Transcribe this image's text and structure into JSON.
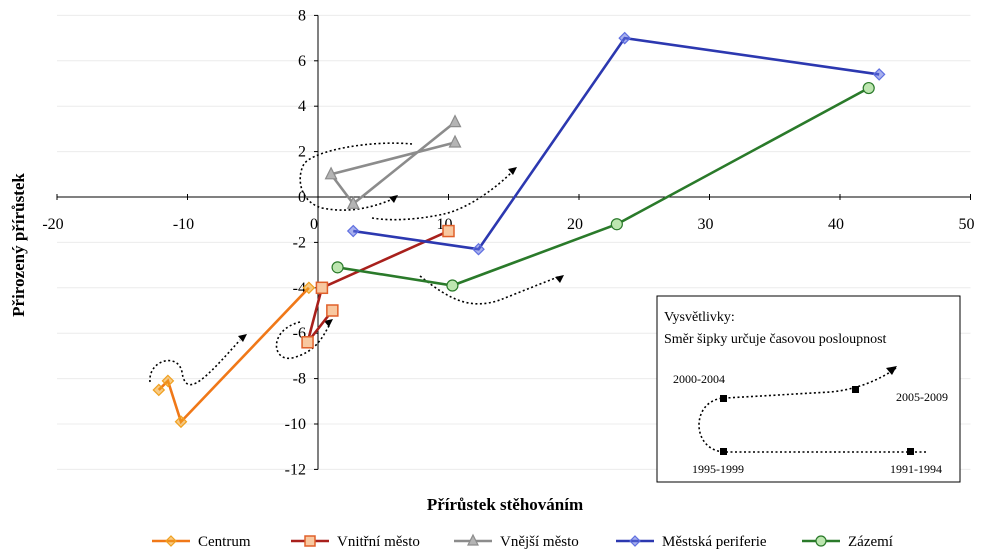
{
  "chart_data": {
    "type": "line",
    "xlabel": "Přírůstek stěhováním",
    "ylabel": "Přirozený přírůstek",
    "xlim": [
      -20,
      50
    ],
    "ylim": [
      -12,
      8
    ],
    "x_ticks": [
      "-20",
      "-10",
      "0",
      "10",
      "20",
      "30",
      "40",
      "50"
    ],
    "y_ticks": [
      "-12",
      "-10",
      "-8",
      "-6",
      "-4",
      "-2",
      "0",
      "2",
      "4",
      "6",
      "8"
    ],
    "grid": "horizontal",
    "legend_position": "bottom",
    "series": [
      {
        "name": "Centrum",
        "color": "#f07818",
        "marker": "diamond",
        "points": [
          [
            -12.2,
            -8.5
          ],
          [
            -11.5,
            -8.1
          ],
          [
            -10.5,
            -9.9
          ],
          [
            -0.7,
            -4.0
          ]
        ]
      },
      {
        "name": "Vnitřní město",
        "color": "#a8201c",
        "marker": "square",
        "points": [
          [
            1.1,
            -5.0
          ],
          [
            -0.8,
            -6.4
          ],
          [
            0.3,
            -4.0
          ],
          [
            10.0,
            -1.5
          ]
        ]
      },
      {
        "name": "Vnější město",
        "color": "#8c8c8c",
        "marker": "triangle",
        "points": [
          [
            10.5,
            3.3
          ],
          [
            2.7,
            -0.3
          ],
          [
            1.0,
            1.0
          ],
          [
            10.5,
            2.4
          ]
        ]
      },
      {
        "name": "Městská periferie",
        "color": "#2c38b0",
        "marker": "diamond",
        "points": [
          [
            2.7,
            -1.5
          ],
          [
            12.3,
            -2.3
          ],
          [
            23.5,
            7.0
          ],
          [
            43.0,
            5.4
          ]
        ]
      },
      {
        "name": "Zázemí",
        "color": "#2a7a2a",
        "marker": "circle",
        "points": [
          [
            1.5,
            -3.1
          ],
          [
            10.3,
            -3.9
          ],
          [
            22.9,
            -1.2
          ],
          [
            42.2,
            4.8
          ]
        ]
      }
    ],
    "annotation": {
      "title": "Vysvětlivky:",
      "subtitle": "Směr šipky určuje časovou posloupnost",
      "labels": [
        "2000-2004",
        "2005-2009",
        "1995-1999",
        "1991-1994"
      ]
    }
  }
}
